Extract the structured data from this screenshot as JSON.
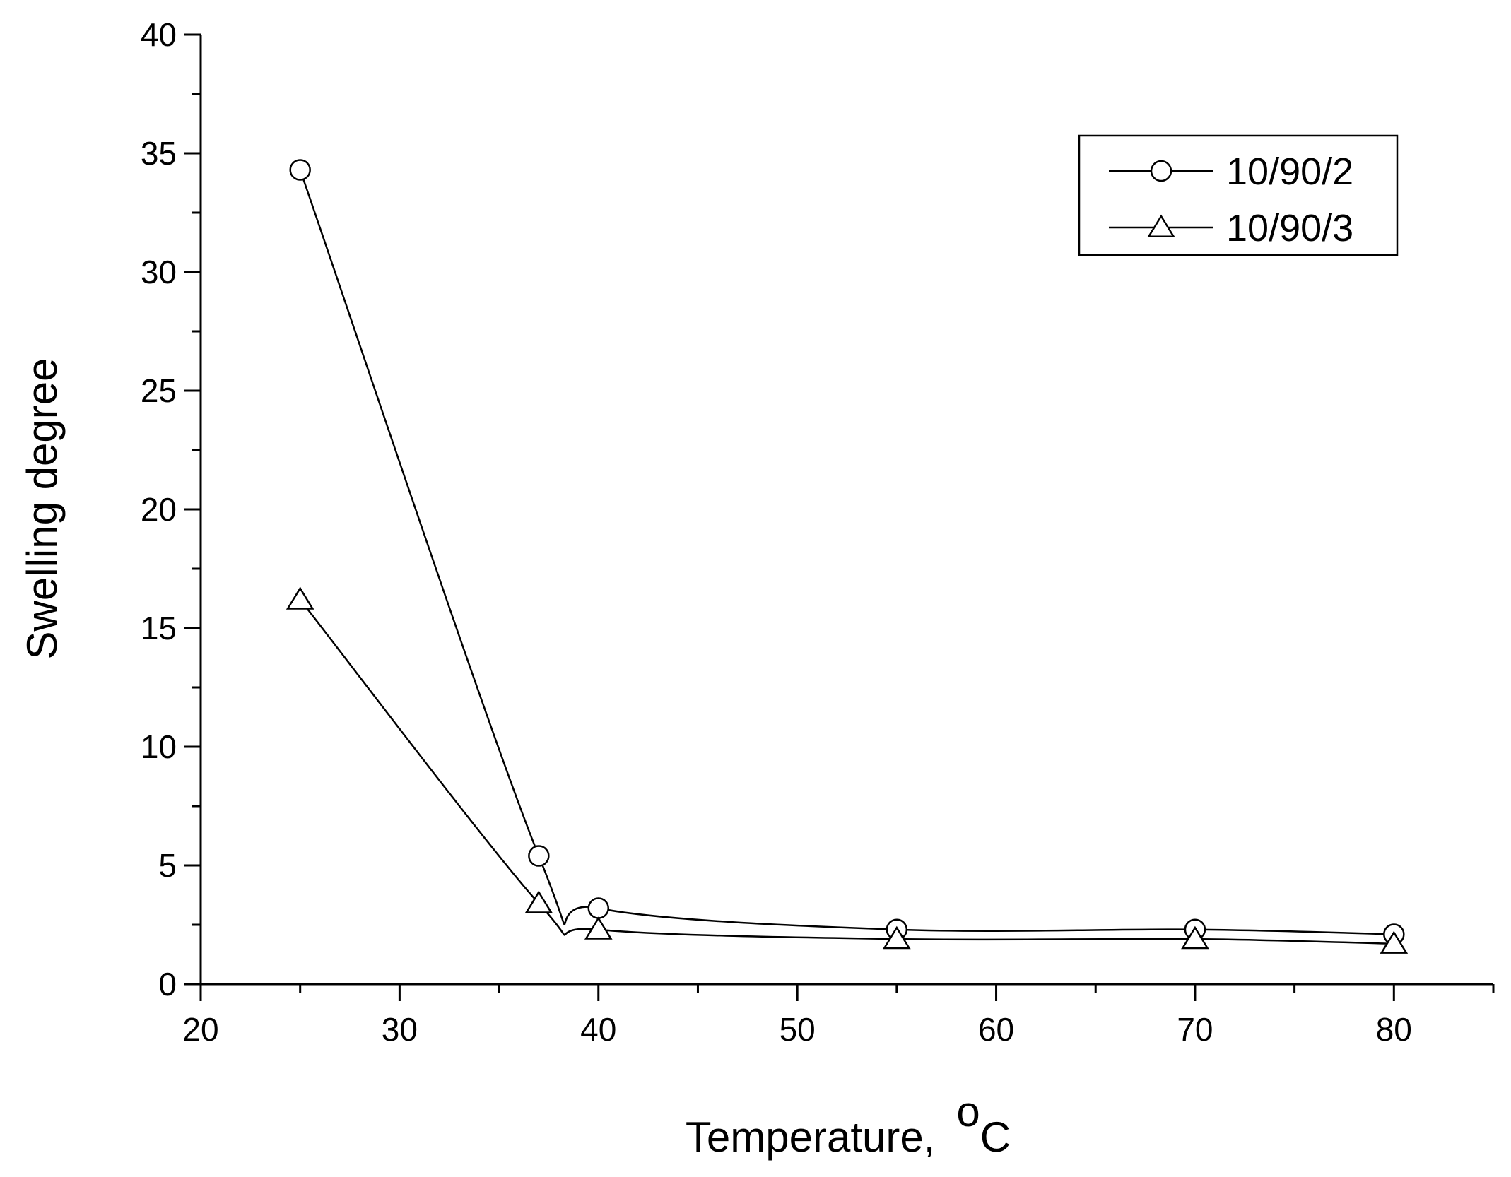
{
  "chart_data": {
    "type": "line",
    "y_label": "Swelling degree",
    "x_label": {
      "text": "Temperature,",
      "sup": "o",
      "unit": "C"
    },
    "x": [
      25,
      37,
      40,
      55,
      70,
      80
    ],
    "series": [
      {
        "name": "10/90/2",
        "color": "#000000",
        "marker": "circle",
        "values": [
          34.3,
          5.4,
          3.2,
          2.3,
          2.3,
          2.1
        ]
      },
      {
        "name": "10/90/3",
        "color": "#000000",
        "marker": "triangle",
        "values": [
          16.2,
          3.4,
          2.3,
          1.9,
          1.9,
          1.7
        ]
      }
    ],
    "xlim": [
      20,
      85
    ],
    "xticks": [
      20,
      30,
      40,
      50,
      60,
      70,
      80
    ],
    "xminor": [
      25,
      35,
      45,
      55,
      65,
      75,
      85
    ],
    "ylim": [
      0,
      40
    ],
    "yticks": [
      0,
      5,
      10,
      15,
      20,
      25,
      30,
      35,
      40
    ],
    "yminor": [
      2.5,
      7.5,
      12.5,
      17.5,
      22.5,
      27.5,
      32.5,
      37.5
    ],
    "grid": false,
    "legend": "upper right"
  }
}
